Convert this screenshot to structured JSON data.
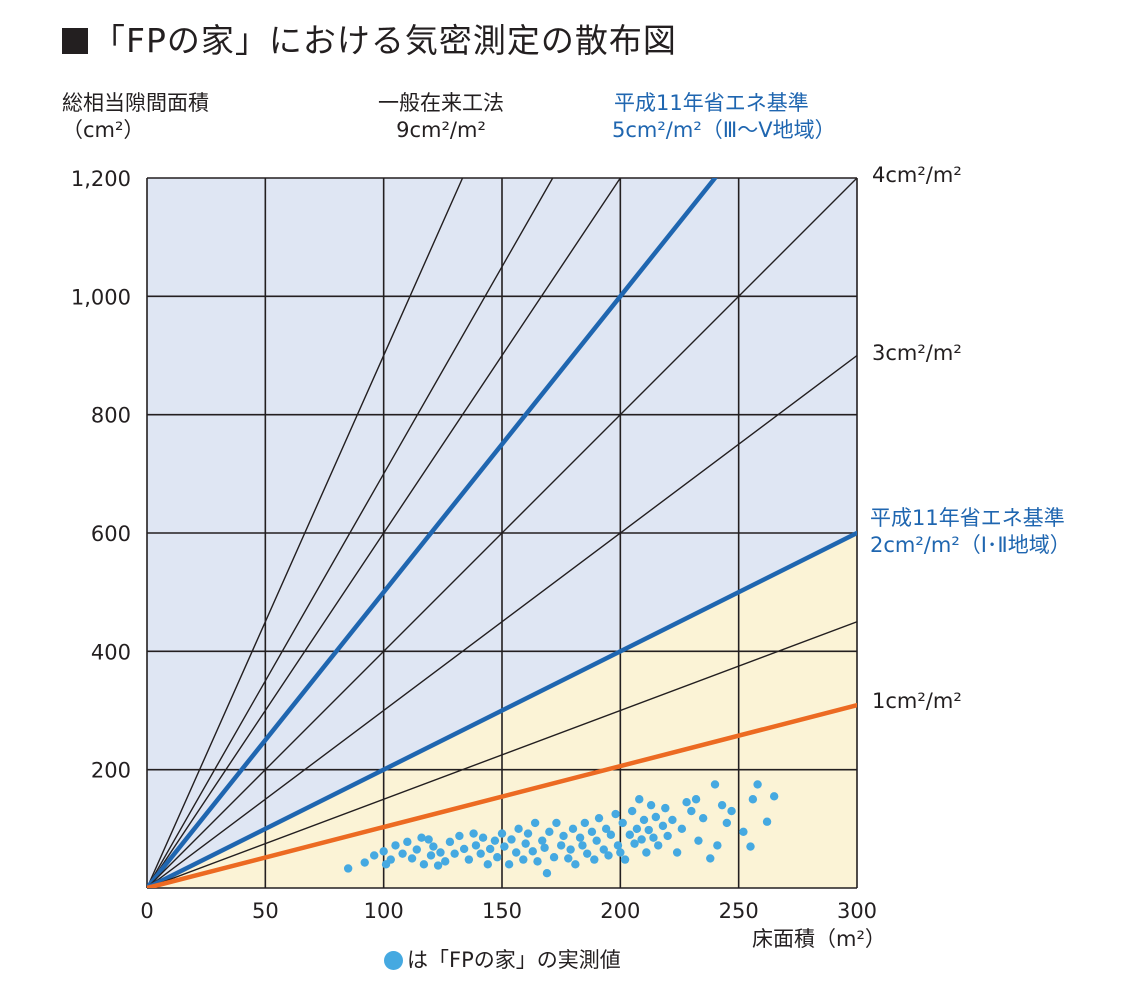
{
  "title": "「FPの家」における気密測定の散布図",
  "colors": {
    "plot_bg": "#dfe6f3",
    "shade_bg": "#fbf3d6",
    "grid": "#231f20",
    "blue_line": "#1f66b0",
    "orange_line": "#ec6a22",
    "dot": "#45a9e1"
  },
  "labels": {
    "y_title_1": "総相当隙間面積",
    "y_title_2": "（cm²）",
    "ref_9_1": "一般在来工法",
    "ref_9_2": "9cm²/m²",
    "ref_5_1": "平成11年省エネ基準",
    "ref_5_2": "5cm²/m²（Ⅲ～Ⅴ地域）",
    "ref_4": "4cm²/m²",
    "ref_3": "3cm²/m²",
    "ref_2_1": "平成11年省エネ基準",
    "ref_2_2": "2cm²/m²（Ⅰ･Ⅱ地域）",
    "ref_1": "1cm²/m²",
    "x_title": "床面積（m²）",
    "legend": "は「FPの家」の実測値"
  },
  "chart_data": {
    "type": "scatter",
    "title": "「FPの家」における気密測定の散布図",
    "xlabel": "床面積（m²）",
    "ylabel": "総相当隙間面積（cm²）",
    "xlim": [
      0,
      300
    ],
    "ylim": [
      0,
      1200
    ],
    "xticks": [
      0,
      50,
      100,
      150,
      200,
      250,
      300
    ],
    "yticks": [
      0,
      200,
      400,
      600,
      800,
      1000,
      1200
    ],
    "xtick_labels": [
      "0",
      "50",
      "100",
      "150",
      "200",
      "250",
      "300"
    ],
    "ytick_labels": [
      "",
      "200",
      "400",
      "600",
      "800",
      "1,000",
      "1,200"
    ],
    "grid": true,
    "reference_lines": [
      {
        "slope": 9,
        "label": "一般在来工法 9cm²/m²",
        "color": "#231f20",
        "style": "thin"
      },
      {
        "slope": 7,
        "label": "",
        "color": "#231f20",
        "style": "thin"
      },
      {
        "slope": 6,
        "label": "",
        "color": "#231f20",
        "style": "thin"
      },
      {
        "slope": 5,
        "label": "平成11年省エネ基準 5cm²/m²（Ⅲ～Ⅴ地域）",
        "color": "#1f66b0",
        "style": "thick"
      },
      {
        "slope": 4,
        "label": "4cm²/m²",
        "color": "#231f20",
        "style": "thin"
      },
      {
        "slope": 3,
        "label": "3cm²/m²",
        "color": "#231f20",
        "style": "thin"
      },
      {
        "slope": 2,
        "label": "平成11年省エネ基準 2cm²/m²（Ⅰ･Ⅱ地域）",
        "color": "#1f66b0",
        "style": "thick"
      },
      {
        "slope": 1.5,
        "label": "",
        "color": "#231f20",
        "style": "thin"
      },
      {
        "slope": 1.03,
        "label": "1cm²/m²",
        "color": "#ec6a22",
        "style": "thick"
      }
    ],
    "series": [
      {
        "name": "「FPの家」の実測値",
        "points": [
          [
            85,
            33
          ],
          [
            92,
            43
          ],
          [
            96,
            55
          ],
          [
            100,
            62
          ],
          [
            101,
            40
          ],
          [
            103,
            48
          ],
          [
            105,
            72
          ],
          [
            108,
            58
          ],
          [
            110,
            78
          ],
          [
            112,
            50
          ],
          [
            114,
            65
          ],
          [
            116,
            85
          ],
          [
            117,
            40
          ],
          [
            119,
            82
          ],
          [
            120,
            55
          ],
          [
            121,
            70
          ],
          [
            123,
            38
          ],
          [
            124,
            60
          ],
          [
            126,
            45
          ],
          [
            128,
            78
          ],
          [
            130,
            58
          ],
          [
            132,
            88
          ],
          [
            134,
            66
          ],
          [
            136,
            48
          ],
          [
            138,
            92
          ],
          [
            139,
            72
          ],
          [
            141,
            58
          ],
          [
            142,
            85
          ],
          [
            144,
            40
          ],
          [
            145,
            66
          ],
          [
            147,
            80
          ],
          [
            148,
            52
          ],
          [
            150,
            92
          ],
          [
            151,
            70
          ],
          [
            153,
            40
          ],
          [
            154,
            82
          ],
          [
            156,
            60
          ],
          [
            157,
            100
          ],
          [
            159,
            48
          ],
          [
            160,
            75
          ],
          [
            161,
            92
          ],
          [
            163,
            62
          ],
          [
            164,
            110
          ],
          [
            165,
            45
          ],
          [
            167,
            80
          ],
          [
            168,
            68
          ],
          [
            169,
            25
          ],
          [
            170,
            95
          ],
          [
            172,
            52
          ],
          [
            173,
            110
          ],
          [
            175,
            72
          ],
          [
            176,
            88
          ],
          [
            178,
            50
          ],
          [
            179,
            65
          ],
          [
            180,
            100
          ],
          [
            181,
            40
          ],
          [
            183,
            85
          ],
          [
            184,
            72
          ],
          [
            185,
            110
          ],
          [
            186,
            58
          ],
          [
            188,
            95
          ],
          [
            189,
            48
          ],
          [
            190,
            80
          ],
          [
            191,
            118
          ],
          [
            193,
            65
          ],
          [
            194,
            100
          ],
          [
            195,
            55
          ],
          [
            196,
            90
          ],
          [
            198,
            125
          ],
          [
            199,
            72
          ],
          [
            200,
            60
          ],
          [
            201,
            110
          ],
          [
            202,
            48
          ],
          [
            204,
            90
          ],
          [
            205,
            130
          ],
          [
            206,
            75
          ],
          [
            207,
            100
          ],
          [
            208,
            150
          ],
          [
            209,
            82
          ],
          [
            210,
            115
          ],
          [
            211,
            60
          ],
          [
            212,
            98
          ],
          [
            213,
            140
          ],
          [
            214,
            85
          ],
          [
            215,
            120
          ],
          [
            216,
            72
          ],
          [
            218,
            105
          ],
          [
            219,
            135
          ],
          [
            220,
            88
          ],
          [
            222,
            115
          ],
          [
            224,
            60
          ],
          [
            226,
            100
          ],
          [
            228,
            145
          ],
          [
            230,
            130
          ],
          [
            232,
            150
          ],
          [
            233,
            80
          ],
          [
            235,
            118
          ],
          [
            238,
            50
          ],
          [
            240,
            175
          ],
          [
            241,
            72
          ],
          [
            243,
            140
          ],
          [
            245,
            110
          ],
          [
            247,
            130
          ],
          [
            252,
            95
          ],
          [
            255,
            70
          ],
          [
            256,
            150
          ],
          [
            258,
            175
          ],
          [
            262,
            112
          ],
          [
            265,
            155
          ]
        ]
      }
    ],
    "shaded_region": "below 2cm²/m² line (pale yellow)"
  }
}
